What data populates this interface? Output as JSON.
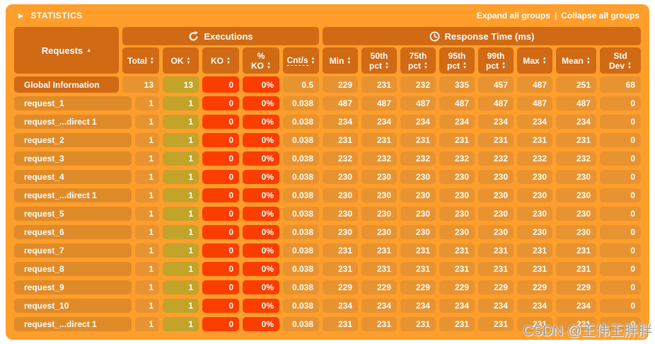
{
  "panel": {
    "title": "STATISTICS",
    "expand_all_label": "Expand all groups",
    "links_separator": "|",
    "collapse_all_label": "Collapse all groups"
  },
  "colors": {
    "container": "#FF9E2B",
    "header_cell": "#D06A14",
    "data_cell": "#E79332",
    "name_cell": "#DF8B2A",
    "ok_cell": "#C2A42B",
    "ko_cell": "#F93E00"
  },
  "icons": {
    "collapse_arrow": "triangle-right",
    "executions": "refresh-circular-arrow",
    "response_time": "clock"
  },
  "table": {
    "requests_header": {
      "label": "Requests",
      "sort": "asc"
    },
    "groups": {
      "executions": "Executions",
      "response_time": "Response Time (ms)"
    },
    "columns": [
      {
        "id": "total",
        "lines": [
          "Total"
        ]
      },
      {
        "id": "ok",
        "lines": [
          "OK"
        ]
      },
      {
        "id": "ko",
        "lines": [
          "KO"
        ]
      },
      {
        "id": "pctko",
        "lines": [
          "%",
          "KO"
        ]
      },
      {
        "id": "cnts",
        "lines": [
          "Cnt/s"
        ],
        "dashed": true
      },
      {
        "id": "min",
        "lines": [
          "Min"
        ]
      },
      {
        "id": "p50",
        "lines": [
          "50th",
          "pct"
        ]
      },
      {
        "id": "p75",
        "lines": [
          "75th",
          "pct"
        ]
      },
      {
        "id": "p95",
        "lines": [
          "95th",
          "pct"
        ]
      },
      {
        "id": "p99",
        "lines": [
          "99th",
          "pct"
        ]
      },
      {
        "id": "max",
        "lines": [
          "Max"
        ]
      },
      {
        "id": "mean",
        "lines": [
          "Mean"
        ]
      },
      {
        "id": "std",
        "lines": [
          "Std",
          "Dev"
        ]
      }
    ],
    "rows": [
      {
        "type": "global",
        "name": "Global Information",
        "cells": [
          "13",
          "13",
          "0",
          "0%",
          "0.5",
          "229",
          "231",
          "232",
          "335",
          "457",
          "487",
          "251",
          "68"
        ]
      },
      {
        "type": "req",
        "name": "request_1",
        "cells": [
          "1",
          "1",
          "0",
          "0%",
          "0.038",
          "487",
          "487",
          "487",
          "487",
          "487",
          "487",
          "487",
          "0"
        ]
      },
      {
        "type": "req",
        "name": "request_...direct 1",
        "cells": [
          "1",
          "1",
          "0",
          "0%",
          "0.038",
          "234",
          "234",
          "234",
          "234",
          "234",
          "234",
          "234",
          "0"
        ]
      },
      {
        "type": "req",
        "name": "request_2",
        "cells": [
          "1",
          "1",
          "0",
          "0%",
          "0.038",
          "231",
          "231",
          "231",
          "231",
          "231",
          "231",
          "231",
          "0"
        ]
      },
      {
        "type": "req",
        "name": "request_3",
        "cells": [
          "1",
          "1",
          "0",
          "0%",
          "0.038",
          "232",
          "232",
          "232",
          "232",
          "232",
          "232",
          "232",
          "0"
        ]
      },
      {
        "type": "req",
        "name": "request_4",
        "cells": [
          "1",
          "1",
          "0",
          "0%",
          "0.038",
          "230",
          "230",
          "230",
          "230",
          "230",
          "230",
          "230",
          "0"
        ]
      },
      {
        "type": "req",
        "name": "request_...direct 1",
        "cells": [
          "1",
          "1",
          "0",
          "0%",
          "0.038",
          "230",
          "230",
          "230",
          "230",
          "230",
          "230",
          "230",
          "0"
        ]
      },
      {
        "type": "req",
        "name": "request_5",
        "cells": [
          "1",
          "1",
          "0",
          "0%",
          "0.038",
          "230",
          "230",
          "230",
          "230",
          "230",
          "230",
          "230",
          "0"
        ]
      },
      {
        "type": "req",
        "name": "request_6",
        "cells": [
          "1",
          "1",
          "0",
          "0%",
          "0.038",
          "230",
          "230",
          "230",
          "230",
          "230",
          "230",
          "230",
          "0"
        ]
      },
      {
        "type": "req",
        "name": "request_7",
        "cells": [
          "1",
          "1",
          "0",
          "0%",
          "0.038",
          "231",
          "231",
          "231",
          "231",
          "231",
          "231",
          "231",
          "0"
        ]
      },
      {
        "type": "req",
        "name": "request_8",
        "cells": [
          "1",
          "1",
          "0",
          "0%",
          "0.038",
          "231",
          "231",
          "231",
          "231",
          "231",
          "231",
          "231",
          "0"
        ]
      },
      {
        "type": "req",
        "name": "request_9",
        "cells": [
          "1",
          "1",
          "0",
          "0%",
          "0.038",
          "229",
          "229",
          "229",
          "229",
          "229",
          "229",
          "229",
          "0"
        ]
      },
      {
        "type": "req",
        "name": "request_10",
        "cells": [
          "1",
          "1",
          "0",
          "0%",
          "0.038",
          "234",
          "234",
          "234",
          "234",
          "234",
          "234",
          "234",
          "0"
        ]
      },
      {
        "type": "req",
        "name": "request_...direct 1",
        "cells": [
          "1",
          "1",
          "0",
          "0%",
          "0.038",
          "231",
          "231",
          "231",
          "231",
          "231",
          "231",
          "231",
          "0"
        ]
      }
    ]
  },
  "watermark": "CSDN @王伟王胖胖"
}
